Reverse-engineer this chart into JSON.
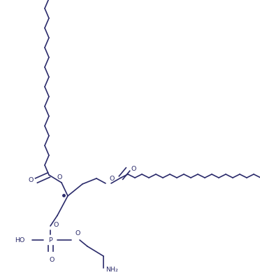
{
  "bg_color": "#ffffff",
  "line_color": "#2b2b6b",
  "figsize": [
    3.72,
    3.93
  ],
  "dpi": 100,
  "lw": 1.2,
  "fs": 6.8,
  "xlim": [
    0,
    372
  ],
  "ylim": [
    0,
    393
  ]
}
